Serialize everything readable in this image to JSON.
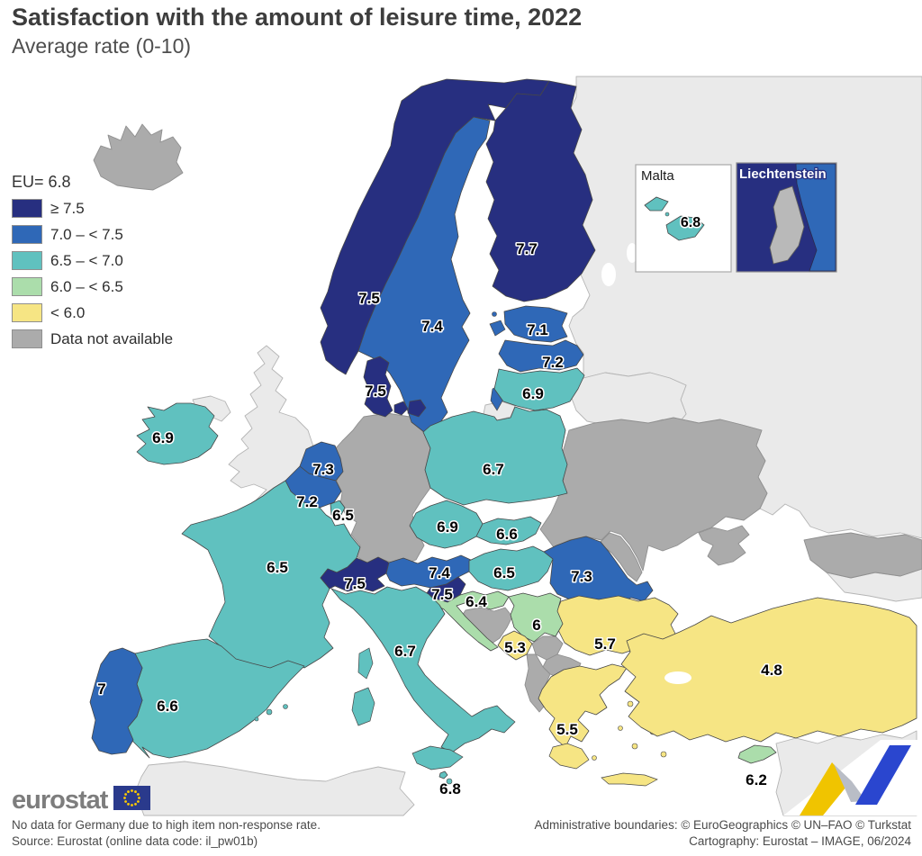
{
  "title": "Satisfaction with the amount of leisure time, 2022",
  "subtitle": "Average rate (0-10)",
  "legend": {
    "eu_label": "EU= 6.8",
    "items": [
      {
        "label": "≥ 7.5",
        "color": "#272f80"
      },
      {
        "label": "7.0 – < 7.5",
        "color": "#2f68b7"
      },
      {
        "label": "6.5 – < 7.0",
        "color": "#60c1bf"
      },
      {
        "label": "6.0 – < 6.5",
        "color": "#abddab"
      },
      {
        "label": "< 6.0",
        "color": "#f6e584"
      },
      {
        "label": "Data not available",
        "color": "#ababab"
      }
    ]
  },
  "chart_data": {
    "type": "choropleth-map",
    "title": "Satisfaction with the amount of leisure time, 2022",
    "subtitle": "Average rate (0-10)",
    "eu_average": 6.8,
    "scale_range": [
      0,
      10
    ],
    "classes": [
      "≥ 7.5",
      "7.0 – < 7.5",
      "6.5 – < 7.0",
      "6.0 – < 6.5",
      "< 6.0",
      "Data not available"
    ],
    "values": {
      "Norway": 7.5,
      "Sweden": 7.4,
      "Finland": 7.7,
      "Denmark": 7.5,
      "Estonia": 7.1,
      "Latvia": 7.2,
      "Lithuania": 6.9,
      "Ireland": 6.9,
      "Netherlands": 7.3,
      "Belgium": 7.2,
      "Luxembourg": 6.5,
      "France": 6.5,
      "Switzerland": 7.5,
      "Austria": 7.4,
      "Czechia": 6.9,
      "Poland": 6.7,
      "Slovakia": 6.6,
      "Hungary": 6.5,
      "Slovenia": 7.5,
      "Croatia": 6.4,
      "Romania": 7.3,
      "Bulgaria": 5.7,
      "Serbia": 6,
      "Montenegro": 5.3,
      "Greece": 5.5,
      "Turkey": 4.8,
      "Cyprus": 6.2,
      "Italy": 6.7,
      "Spain": 6.6,
      "Portugal": 7,
      "Malta": 6.8
    },
    "no_data": [
      "Germany",
      "Iceland",
      "Ukraine",
      "Moldova",
      "Bosnia and Herzegovina",
      "Kosovo",
      "North Macedonia",
      "Albania",
      "Liechtenstein"
    ]
  },
  "map": {
    "countries": [
      {
        "id": "NO",
        "name": "Norway",
        "value": "7.5",
        "category": 0
      },
      {
        "id": "SE",
        "name": "Sweden",
        "value": "7.4",
        "category": 1
      },
      {
        "id": "FI",
        "name": "Finland",
        "value": "7.7",
        "category": 0
      },
      {
        "id": "DK",
        "name": "Denmark",
        "value": "7.5",
        "category": 0
      },
      {
        "id": "EE",
        "name": "Estonia",
        "value": "7.1",
        "category": 1
      },
      {
        "id": "LV",
        "name": "Latvia",
        "value": "7.2",
        "category": 1
      },
      {
        "id": "LT",
        "name": "Lithuania",
        "value": "6.9",
        "category": 2
      },
      {
        "id": "IE",
        "name": "Ireland",
        "value": "6.9",
        "category": 2
      },
      {
        "id": "NL",
        "name": "Netherlands",
        "value": "7.3",
        "category": 1
      },
      {
        "id": "BE",
        "name": "Belgium",
        "value": "7.2",
        "category": 1
      },
      {
        "id": "LU",
        "name": "Luxembourg",
        "value": "6.5",
        "category": 2
      },
      {
        "id": "FR",
        "name": "France",
        "value": "6.5",
        "category": 2
      },
      {
        "id": "CH",
        "name": "Switzerland",
        "value": "7.5",
        "category": 0
      },
      {
        "id": "AT",
        "name": "Austria",
        "value": "7.4",
        "category": 1
      },
      {
        "id": "CZ",
        "name": "Czechia",
        "value": "6.9",
        "category": 2
      },
      {
        "id": "PL",
        "name": "Poland",
        "value": "6.7",
        "category": 2
      },
      {
        "id": "SK",
        "name": "Slovakia",
        "value": "6.6",
        "category": 2
      },
      {
        "id": "HU",
        "name": "Hungary",
        "value": "6.5",
        "category": 2
      },
      {
        "id": "SI",
        "name": "Slovenia",
        "value": "7.5",
        "category": 0
      },
      {
        "id": "HR",
        "name": "Croatia",
        "value": "6.4",
        "category": 3
      },
      {
        "id": "RO",
        "name": "Romania",
        "value": "7.3",
        "category": 1
      },
      {
        "id": "BG",
        "name": "Bulgaria",
        "value": "5.7",
        "category": 4
      },
      {
        "id": "RS",
        "name": "Serbia",
        "value": "6",
        "category": 3
      },
      {
        "id": "ME",
        "name": "Montenegro",
        "value": "5.3",
        "category": 4
      },
      {
        "id": "EL",
        "name": "Greece",
        "value": "5.5",
        "category": 4
      },
      {
        "id": "TR",
        "name": "Turkey",
        "value": "4.8",
        "category": 4
      },
      {
        "id": "CY",
        "name": "Cyprus",
        "value": "6.2",
        "category": 3
      },
      {
        "id": "IT",
        "name": "Italy",
        "value": "6.7",
        "category": 2
      },
      {
        "id": "ES",
        "name": "Spain",
        "value": "6.6",
        "category": 2
      },
      {
        "id": "PT",
        "name": "Portugal",
        "value": "7",
        "category": 1
      },
      {
        "id": "MT",
        "name": "Malta",
        "value": "6.8",
        "category": 2
      }
    ],
    "insets": {
      "malta": {
        "title": "Malta",
        "value": "6.8"
      },
      "liechtenstein": {
        "title": "Liechtenstein"
      }
    }
  },
  "logo": {
    "brand": "eurostat"
  },
  "footer": {
    "note": "No data for Germany due to high item non-response rate.",
    "source": "Source: Eurostat (online data code: il_pw01b)",
    "admin": "Administrative boundaries: © EuroGeographics © UN–FAO © Turkstat",
    "carto": "Cartography: Eurostat – IMAGE, 06/2024"
  }
}
